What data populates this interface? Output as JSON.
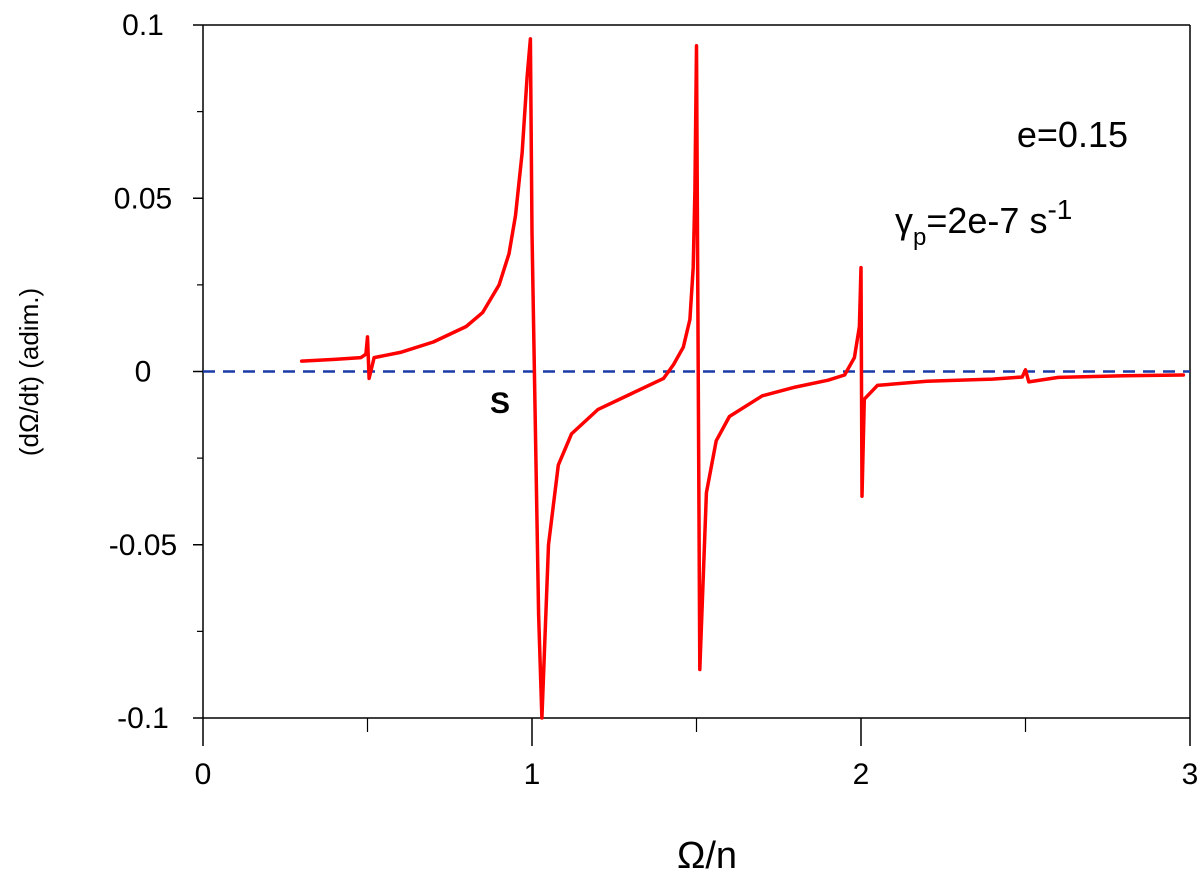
{
  "chart_data": {
    "type": "line",
    "xlabel": "Ω/n",
    "ylabel": "(dΩ/dt)  (adim.)",
    "xlim": [
      0,
      3
    ],
    "ylim": [
      -0.1,
      0.1
    ],
    "x_ticks": [
      "0",
      "1",
      "2",
      "3"
    ],
    "x_tick_values": [
      0,
      1,
      2,
      3
    ],
    "y_ticks": [
      "-0.1",
      "-0.05",
      "0",
      "0.05",
      "0.1"
    ],
    "y_tick_values": [
      -0.1,
      -0.05,
      0,
      0.05,
      0.1
    ],
    "grid": false,
    "annotations": {
      "ecc": "e=0.15",
      "gamma_sym": "γ",
      "gamma_sub": "p",
      "gamma_val": "=2e-7 s",
      "gamma_sup": "-1",
      "marker": "S"
    },
    "zero_line": {
      "y": 0,
      "color": "#1a3aa8",
      "style": "dashed"
    },
    "series": [
      {
        "color": "#ff0000",
        "x": [
          0.3,
          0.4,
          0.48,
          0.495,
          0.5,
          0.505,
          0.52,
          0.6,
          0.7,
          0.8,
          0.85,
          0.9,
          0.93,
          0.95,
          0.97,
          0.985,
          0.995,
          1.0,
          1.02,
          1.03,
          1.05,
          1.08,
          1.12,
          1.2,
          1.3,
          1.4,
          1.43,
          1.46,
          1.48,
          1.49,
          1.495,
          1.5,
          1.51,
          1.53,
          1.56,
          1.6,
          1.7,
          1.8,
          1.9,
          1.95,
          1.98,
          1.995,
          2.0,
          2.003,
          2.01,
          2.05,
          2.2,
          2.4,
          2.49,
          2.5,
          2.51,
          2.6,
          2.8,
          2.98
        ],
        "y": [
          0.003,
          0.0035,
          0.004,
          0.005,
          0.01,
          -0.002,
          0.004,
          0.0055,
          0.0085,
          0.013,
          0.017,
          0.025,
          0.034,
          0.045,
          0.063,
          0.085,
          0.096,
          0.04,
          -0.07,
          -0.1,
          -0.05,
          -0.027,
          -0.018,
          -0.011,
          -0.0065,
          -0.002,
          0.002,
          0.007,
          0.015,
          0.03,
          0.052,
          0.094,
          -0.086,
          -0.035,
          -0.02,
          -0.013,
          -0.007,
          -0.0045,
          -0.0025,
          -0.001,
          0.004,
          0.013,
          0.03,
          -0.036,
          -0.008,
          -0.004,
          -0.0028,
          -0.0022,
          -0.0016,
          0.0005,
          -0.003,
          -0.0017,
          -0.0012,
          -0.001
        ]
      }
    ]
  }
}
